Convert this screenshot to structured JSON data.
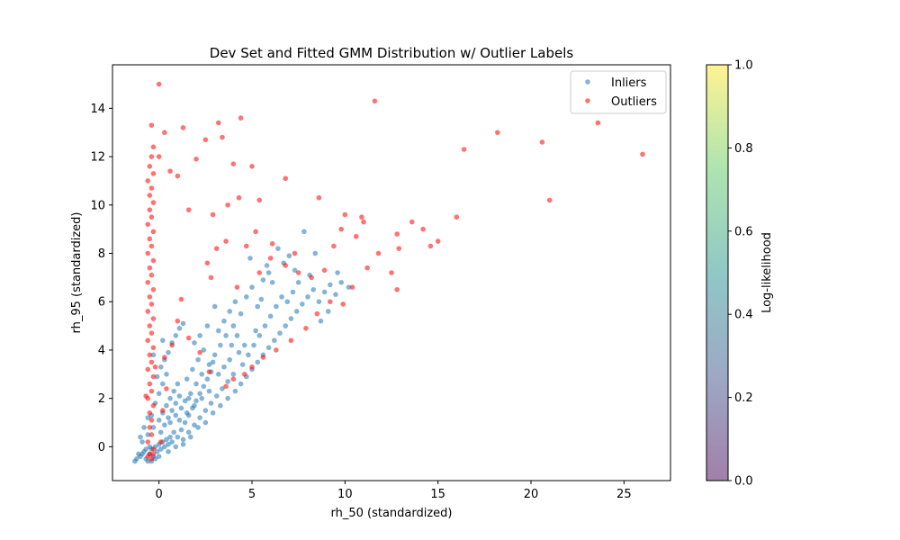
{
  "chart_data": {
    "type": "scatter",
    "title": "Dev Set and Fitted GMM Distribution w/ Outlier Labels",
    "xlabel": "rh_50 (standardized)",
    "ylabel": "rh_95 (standardized)",
    "xlim": [
      -2.5,
      27.5
    ],
    "ylim": [
      -1.4,
      15.8
    ],
    "xticks": [
      0,
      5,
      10,
      15,
      20,
      25
    ],
    "yticks": [
      0,
      2,
      4,
      6,
      8,
      10,
      12,
      14
    ],
    "grid": false,
    "legend_position": "upper right",
    "series": [
      {
        "name": "Inliers",
        "color": "#1f77b4",
        "points": [
          [
            -1.2,
            -0.5
          ],
          [
            -1.0,
            -0.4
          ],
          [
            -0.9,
            -0.3
          ],
          [
            -0.8,
            -0.2
          ],
          [
            -0.7,
            -0.5
          ],
          [
            -0.6,
            -0.6
          ],
          [
            -0.5,
            -0.3
          ],
          [
            -0.4,
            -0.1
          ],
          [
            -0.3,
            -0.4
          ],
          [
            -0.2,
            0.0
          ],
          [
            -0.1,
            -0.2
          ],
          [
            0.0,
            0.1
          ],
          [
            0.1,
            -0.1
          ],
          [
            0.2,
            0.2
          ],
          [
            0.3,
            0.0
          ],
          [
            0.4,
            0.3
          ],
          [
            0.5,
            0.1
          ],
          [
            0.6,
            0.4
          ],
          [
            0.7,
            0.2
          ],
          [
            0.8,
            0.6
          ],
          [
            -0.9,
            0.2
          ],
          [
            -0.6,
            0.5
          ],
          [
            -0.3,
            0.8
          ],
          [
            0.0,
            1.1
          ],
          [
            0.2,
            1.4
          ],
          [
            0.4,
            1.7
          ],
          [
            0.6,
            2.0
          ],
          [
            0.8,
            2.3
          ],
          [
            1.0,
            2.6
          ],
          [
            -0.4,
            1.3
          ],
          [
            -0.2,
            1.8
          ],
          [
            0.0,
            2.2
          ],
          [
            0.2,
            2.6
          ],
          [
            0.4,
            3.0
          ],
          [
            0.1,
            0.6
          ],
          [
            0.3,
            0.9
          ],
          [
            0.5,
            1.2
          ],
          [
            0.7,
            1.5
          ],
          [
            0.9,
            1.8
          ],
          [
            1.1,
            2.1
          ],
          [
            1.0,
            0.4
          ],
          [
            1.2,
            0.7
          ],
          [
            1.4,
            1.0
          ],
          [
            1.6,
            1.3
          ],
          [
            1.8,
            1.6
          ],
          [
            2.0,
            1.9
          ],
          [
            2.2,
            2.2
          ],
          [
            2.4,
            2.5
          ],
          [
            2.6,
            2.8
          ],
          [
            2.8,
            3.1
          ],
          [
            1.3,
            0.3
          ],
          [
            1.6,
            0.6
          ],
          [
            1.9,
            0.9
          ],
          [
            2.2,
            1.2
          ],
          [
            2.5,
            1.5
          ],
          [
            2.8,
            1.8
          ],
          [
            3.1,
            2.1
          ],
          [
            3.4,
            2.4
          ],
          [
            3.7,
            2.7
          ],
          [
            4.0,
            3.0
          ],
          [
            1.5,
            2.8
          ],
          [
            1.8,
            3.2
          ],
          [
            2.1,
            3.6
          ],
          [
            2.4,
            4.0
          ],
          [
            2.7,
            3.4
          ],
          [
            3.0,
            3.8
          ],
          [
            3.3,
            4.2
          ],
          [
            3.6,
            4.6
          ],
          [
            3.9,
            4.2
          ],
          [
            4.2,
            4.6
          ],
          [
            0.5,
            -0.2
          ],
          [
            0.9,
            0.0
          ],
          [
            1.3,
            0.1
          ],
          [
            1.7,
            0.4
          ],
          [
            2.1,
            0.8
          ],
          [
            2.5,
            1.0
          ],
          [
            2.9,
            1.4
          ],
          [
            3.3,
            1.7
          ],
          [
            3.7,
            2.0
          ],
          [
            4.1,
            2.3
          ],
          [
            4.4,
            2.6
          ],
          [
            4.7,
            2.9
          ],
          [
            5.0,
            3.2
          ],
          [
            5.3,
            3.5
          ],
          [
            5.6,
            3.8
          ],
          [
            5.9,
            4.1
          ],
          [
            6.2,
            4.4
          ],
          [
            6.5,
            4.7
          ],
          [
            6.8,
            5.0
          ],
          [
            7.1,
            5.3
          ],
          [
            4.5,
            3.4
          ],
          [
            4.8,
            3.8
          ],
          [
            5.1,
            4.2
          ],
          [
            5.4,
            4.6
          ],
          [
            5.7,
            5.0
          ],
          [
            6.0,
            5.4
          ],
          [
            6.3,
            5.8
          ],
          [
            6.6,
            6.2
          ],
          [
            6.9,
            6.0
          ],
          [
            7.2,
            6.4
          ],
          [
            3.2,
            4.8
          ],
          [
            3.5,
            5.2
          ],
          [
            3.8,
            5.6
          ],
          [
            4.1,
            6.0
          ],
          [
            4.4,
            5.5
          ],
          [
            4.7,
            6.2
          ],
          [
            5.0,
            6.6
          ],
          [
            5.3,
            5.8
          ],
          [
            5.6,
            6.9
          ],
          [
            5.9,
            7.2
          ],
          [
            7.4,
            5.6
          ],
          [
            7.7,
            5.9
          ],
          [
            8.0,
            6.2
          ],
          [
            8.3,
            6.5
          ],
          [
            8.6,
            6.0
          ],
          [
            8.9,
            6.4
          ],
          [
            9.2,
            6.7
          ],
          [
            9.5,
            6.3
          ],
          [
            7.5,
            6.8
          ],
          [
            8.1,
            7.1
          ],
          [
            6.4,
            8.2
          ],
          [
            7.8,
            8.9
          ],
          [
            6.7,
            7.6
          ],
          [
            8.4,
            8.0
          ],
          [
            5.8,
            7.5
          ],
          [
            4.9,
            7.8
          ],
          [
            3.0,
            5.8
          ],
          [
            2.6,
            5.0
          ],
          [
            2.2,
            4.6
          ],
          [
            1.9,
            4.3
          ],
          [
            0.1,
            3.3
          ],
          [
            -0.1,
            2.9
          ],
          [
            0.3,
            3.6
          ],
          [
            0.5,
            3.9
          ],
          [
            0.7,
            4.3
          ],
          [
            0.9,
            4.6
          ],
          [
            1.1,
            4.9
          ],
          [
            1.3,
            5.1
          ],
          [
            0.2,
            4.4
          ],
          [
            -0.3,
            3.8
          ],
          [
            -0.6,
            1.2
          ],
          [
            -0.8,
            0.8
          ],
          [
            -1.0,
            0.4
          ],
          [
            -0.5,
            0.0
          ],
          [
            -0.7,
            -0.1
          ],
          [
            -1.1,
            -0.3
          ],
          [
            -1.3,
            -0.6
          ],
          [
            -0.4,
            -0.6
          ],
          [
            -0.2,
            -0.5
          ],
          [
            0.0,
            -0.4
          ],
          [
            1.6,
            2.0
          ],
          [
            2.0,
            2.6
          ],
          [
            2.3,
            3.0
          ],
          [
            2.9,
            3.5
          ],
          [
            3.2,
            3.0
          ],
          [
            3.5,
            3.3
          ],
          [
            3.8,
            3.6
          ],
          [
            4.3,
            3.9
          ],
          [
            4.6,
            4.2
          ],
          [
            5.2,
            4.8
          ],
          [
            0.6,
            1.0
          ],
          [
            0.9,
            1.3
          ],
          [
            1.2,
            1.6
          ],
          [
            1.4,
            1.9
          ],
          [
            1.7,
            2.2
          ],
          [
            1.1,
            1.1
          ],
          [
            1.5,
            1.4
          ],
          [
            1.9,
            1.7
          ],
          [
            2.3,
            2.0
          ],
          [
            2.7,
            2.3
          ],
          [
            9.8,
            6.8
          ],
          [
            9.1,
            5.6
          ],
          [
            8.7,
            5.2
          ],
          [
            10.2,
            6.6
          ],
          [
            9.6,
            7.2
          ],
          [
            7.0,
            7.9
          ],
          [
            7.3,
            7.3
          ],
          [
            6.1,
            6.8
          ],
          [
            5.5,
            6.1
          ],
          [
            4.0,
            5.0
          ]
        ]
      },
      {
        "name": "Outliers",
        "color": "#ff0000",
        "points": [
          [
            0.0,
            15.0
          ],
          [
            -0.4,
            13.3
          ],
          [
            -0.3,
            12.4
          ],
          [
            -0.4,
            12.0
          ],
          [
            -0.5,
            11.6
          ],
          [
            -0.3,
            11.3
          ],
          [
            -0.6,
            11.0
          ],
          [
            -0.4,
            10.7
          ],
          [
            -0.5,
            10.4
          ],
          [
            -0.3,
            10.1
          ],
          [
            -0.5,
            9.8
          ],
          [
            -0.4,
            9.5
          ],
          [
            -0.6,
            9.2
          ],
          [
            -0.3,
            8.9
          ],
          [
            -0.5,
            8.6
          ],
          [
            -0.4,
            8.3
          ],
          [
            -0.6,
            8.0
          ],
          [
            -0.3,
            7.7
          ],
          [
            -0.5,
            7.4
          ],
          [
            -0.4,
            7.1
          ],
          [
            -0.6,
            6.8
          ],
          [
            -0.3,
            6.5
          ],
          [
            -0.5,
            6.2
          ],
          [
            -0.4,
            5.9
          ],
          [
            -0.6,
            5.6
          ],
          [
            -0.3,
            5.3
          ],
          [
            -0.5,
            5.0
          ],
          [
            -0.4,
            4.7
          ],
          [
            -0.6,
            4.4
          ],
          [
            -0.3,
            4.1
          ],
          [
            -0.5,
            3.8
          ],
          [
            -0.4,
            3.5
          ],
          [
            -0.6,
            3.2
          ],
          [
            -0.3,
            2.9
          ],
          [
            -0.5,
            2.6
          ],
          [
            -0.4,
            2.3
          ],
          [
            -0.6,
            2.0
          ],
          [
            -0.3,
            1.7
          ],
          [
            -0.5,
            1.4
          ],
          [
            -0.4,
            1.1
          ],
          [
            -0.5,
            0.8
          ],
          [
            -0.4,
            0.5
          ],
          [
            -0.6,
            0.2
          ],
          [
            -0.3,
            -0.1
          ],
          [
            -0.5,
            -0.3
          ],
          [
            -0.4,
            -0.5
          ],
          [
            -0.6,
            -0.4
          ],
          [
            -0.3,
            -0.3
          ],
          [
            -0.7,
            2.1
          ],
          [
            -0.2,
            3.3
          ],
          [
            0.0,
            12.0
          ],
          [
            0.3,
            13.0
          ],
          [
            0.6,
            11.4
          ],
          [
            1.0,
            11.2
          ],
          [
            1.3,
            13.2
          ],
          [
            1.6,
            9.8
          ],
          [
            2.0,
            11.9
          ],
          [
            2.5,
            12.7
          ],
          [
            3.2,
            13.4
          ],
          [
            3.4,
            12.8
          ],
          [
            4.4,
            13.6
          ],
          [
            5.0,
            11.6
          ],
          [
            4.0,
            11.7
          ],
          [
            5.4,
            10.2
          ],
          [
            6.8,
            11.1
          ],
          [
            4.3,
            10.3
          ],
          [
            3.7,
            10.0
          ],
          [
            2.9,
            9.6
          ],
          [
            3.1,
            8.2
          ],
          [
            2.6,
            7.6
          ],
          [
            2.8,
            7.0
          ],
          [
            3.6,
            8.5
          ],
          [
            4.7,
            8.3
          ],
          [
            5.2,
            8.9
          ],
          [
            6.1,
            8.4
          ],
          [
            6.8,
            7.5
          ],
          [
            7.5,
            7.2
          ],
          [
            8.2,
            7.0
          ],
          [
            8.9,
            7.3
          ],
          [
            9.4,
            8.3
          ],
          [
            10.0,
            9.6
          ],
          [
            10.9,
            9.5
          ],
          [
            11.6,
            14.3
          ],
          [
            10.6,
            8.7
          ],
          [
            11.8,
            8.0
          ],
          [
            12.5,
            7.2
          ],
          [
            12.8,
            6.5
          ],
          [
            11.2,
            7.4
          ],
          [
            10.4,
            6.6
          ],
          [
            9.9,
            5.9
          ],
          [
            9.2,
            6.0
          ],
          [
            8.5,
            5.5
          ],
          [
            7.9,
            4.9
          ],
          [
            7.1,
            4.4
          ],
          [
            6.3,
            4.0
          ],
          [
            5.6,
            3.7
          ],
          [
            5.0,
            3.3
          ],
          [
            4.6,
            3.0
          ],
          [
            4.0,
            2.8
          ],
          [
            3.6,
            2.5
          ],
          [
            13.6,
            9.3
          ],
          [
            14.2,
            9.0
          ],
          [
            14.6,
            8.3
          ],
          [
            15.0,
            8.5
          ],
          [
            16.0,
            9.5
          ],
          [
            16.4,
            12.3
          ],
          [
            18.2,
            13.0
          ],
          [
            20.6,
            12.6
          ],
          [
            21.0,
            10.2
          ],
          [
            23.6,
            13.4
          ],
          [
            26.0,
            12.1
          ],
          [
            12.8,
            8.8
          ],
          [
            12.9,
            8.2
          ],
          [
            11.0,
            9.3
          ],
          [
            9.8,
            9.0
          ],
          [
            8.6,
            10.3
          ],
          [
            7.3,
            8.0
          ],
          [
            6.0,
            7.8
          ],
          [
            5.4,
            7.2
          ],
          [
            4.2,
            6.6
          ],
          [
            1.2,
            6.1
          ],
          [
            1.0,
            5.2
          ],
          [
            0.7,
            4.2
          ],
          [
            0.3,
            3.7
          ],
          [
            0.4,
            2.4
          ],
          [
            0.2,
            1.5
          ],
          [
            0.1,
            0.2
          ],
          [
            1.6,
            4.5
          ],
          [
            2.2,
            3.9
          ],
          [
            2.7,
            3.1
          ]
        ]
      }
    ],
    "colorbar": {
      "label": "Log-likelihood",
      "range": [
        0.0,
        1.0
      ],
      "ticks": [
        "0.0",
        "0.2",
        "0.4",
        "0.6",
        "0.8",
        "1.0"
      ],
      "colormap": "viridis",
      "alpha": 0.5
    }
  }
}
